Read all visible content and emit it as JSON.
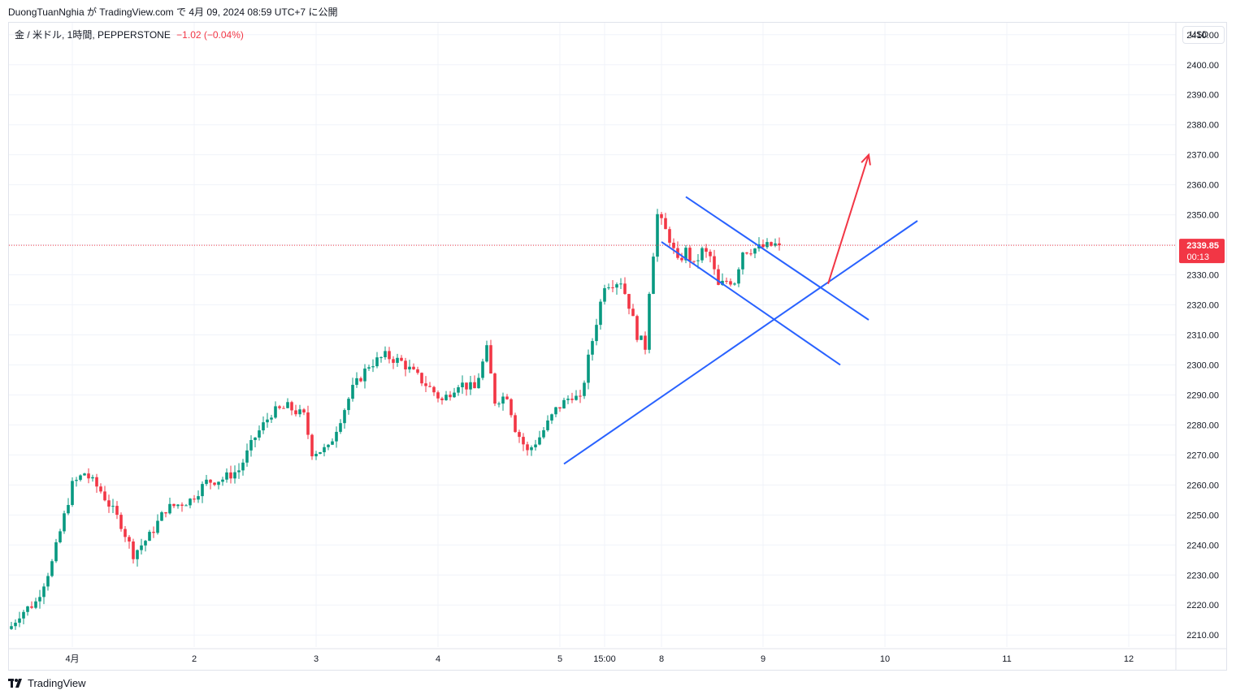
{
  "header": {
    "author": "DuongTuanNghia",
    "published": "が TradingView.com で 4月 09, 2024 08:59 UTC+7 に公開"
  },
  "legend": {
    "symbol": "金 / 米ドル, 1時間, PEPPERSTONE",
    "change": "−1.02 (−0.04%)"
  },
  "currency": "USD",
  "footer": {
    "brand": "TradingView"
  },
  "colors": {
    "up": "#089981",
    "down": "#f23645",
    "trendline": "#2962ff",
    "arrow": "#f23645"
  },
  "chart_data": {
    "type": "candlestick",
    "title": "",
    "x_ticks": [
      "4月",
      "2",
      "3",
      "4",
      "5",
      "15:00",
      "8",
      "9",
      "10",
      "11",
      "12"
    ],
    "y_ticks": [
      2210,
      2220,
      2230,
      2240,
      2250,
      2260,
      2270,
      2280,
      2290,
      2300,
      2310,
      2320,
      2330,
      2340,
      2350,
      2360,
      2370,
      2380,
      2390,
      2400,
      2410
    ],
    "ylim": [
      2206,
      2414
    ],
    "grid": true,
    "last_price": {
      "value": "2339.85",
      "countdown": "00:13"
    },
    "anchors": [
      [
        0,
        2213
      ],
      [
        2,
        2217
      ],
      [
        6,
        2221
      ],
      [
        10,
        2234
      ],
      [
        15,
        2260
      ],
      [
        18,
        2264
      ],
      [
        22,
        2258
      ],
      [
        27,
        2247
      ],
      [
        30,
        2237
      ],
      [
        34,
        2243
      ],
      [
        38,
        2252
      ],
      [
        44,
        2255
      ],
      [
        48,
        2261
      ],
      [
        52,
        2262
      ],
      [
        56,
        2265
      ],
      [
        60,
        2276
      ],
      [
        64,
        2284
      ],
      [
        68,
        2286
      ],
      [
        72,
        2283
      ],
      [
        74,
        2271
      ],
      [
        78,
        2272
      ],
      [
        80,
        2279
      ],
      [
        84,
        2292
      ],
      [
        88,
        2300
      ],
      [
        92,
        2303
      ],
      [
        96,
        2301
      ],
      [
        100,
        2296
      ],
      [
        104,
        2291
      ],
      [
        106,
        2288
      ],
      [
        110,
        2294
      ],
      [
        114,
        2292
      ],
      [
        117,
        2305
      ],
      [
        119,
        2288
      ],
      [
        122,
        2290
      ],
      [
        124,
        2279
      ],
      [
        127,
        2271
      ],
      [
        130,
        2276
      ],
      [
        134,
        2285
      ],
      [
        138,
        2290
      ],
      [
        140,
        2288
      ],
      [
        142,
        2302
      ],
      [
        146,
        2327
      ],
      [
        150,
        2328
      ],
      [
        152,
        2320
      ],
      [
        154,
        2310
      ],
      [
        156,
        2306
      ],
      [
        157,
        2325
      ],
      [
        159,
        2350
      ],
      [
        162,
        2342
      ],
      [
        164,
        2334
      ],
      [
        166,
        2338
      ],
      [
        168,
        2333
      ],
      [
        170,
        2338
      ],
      [
        172,
        2336
      ],
      [
        174,
        2326
      ],
      [
        176,
        2328
      ],
      [
        178,
        2328
      ],
      [
        180,
        2338
      ],
      [
        184,
        2339
      ],
      [
        188,
        2340
      ],
      [
        189,
        2339.85
      ]
    ],
    "trendlines": [
      {
        "name": "support",
        "from": [
          "4月 5 13:00",
          2267
        ],
        "to": [
          "4月 10 05:00",
          2348
        ]
      },
      {
        "name": "flag-upper",
        "from": [
          "4月 8 03:00",
          2356
        ],
        "to": [
          "4月 9 21:00",
          2315
        ]
      },
      {
        "name": "flag-lower",
        "from": [
          "4月 8 02:00",
          2341
        ],
        "to": [
          "4月 9 14:00",
          2300
        ]
      },
      {
        "name": "projection-arrow",
        "from": [
          "4月 9 10:00",
          2327
        ],
        "to": [
          "4月 9 20:00",
          2370
        ]
      }
    ]
  }
}
